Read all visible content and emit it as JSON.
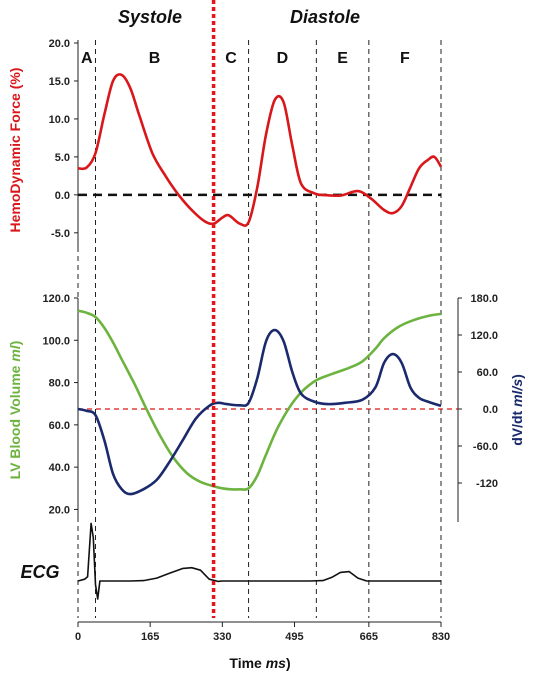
{
  "chart_data": {
    "type": "line",
    "headings": {
      "left": "Systole",
      "right": "Diastole"
    },
    "phase_labels": [
      "A",
      "B",
      "C",
      "D",
      "E",
      "F"
    ],
    "phase_boundaries_ms": [
      0,
      40,
      310,
      390,
      545,
      665,
      830
    ],
    "systole_diastole_boundary_ms": 310,
    "colors": {
      "force": "#d9171b",
      "volume": "#6db33f",
      "dvdt": "#1a2a6c",
      "ecg": "#111111",
      "divider": "#e3161b"
    },
    "x_axis": {
      "label_main": "Time ",
      "label_unit": "ms",
      "ticks": [
        0,
        165,
        330,
        495,
        665,
        830
      ],
      "tick_labels": [
        "0",
        "165",
        "330",
        "495",
        "665",
        "830"
      ],
      "range": [
        0,
        830
      ]
    },
    "panel_force": {
      "ylabel": "HemoDynamic Force (%)",
      "ylim": [
        -7,
        20
      ],
      "yticks": [
        20,
        15,
        10,
        5,
        0,
        -5
      ],
      "ytick_labels": [
        "20.0",
        "15.0",
        "10.0",
        "5.0",
        "0.0",
        "-5.0"
      ],
      "zero_line": 0,
      "series": [
        {
          "name": "HemoDynamic Force",
          "x": [
            0,
            20,
            40,
            60,
            80,
            100,
            120,
            140,
            170,
            200,
            230,
            260,
            290,
            310,
            330,
            345,
            370,
            390,
            410,
            430,
            450,
            470,
            490,
            510,
            540,
            560,
            600,
            640,
            670,
            700,
            720,
            740,
            760,
            780,
            800,
            815,
            830
          ],
          "y": [
            3.5,
            3.6,
            5.5,
            10.5,
            15.0,
            15.8,
            14.0,
            10.5,
            5.5,
            2.5,
            0,
            -2.0,
            -3.5,
            -3.8,
            -3.0,
            -2.7,
            -3.8,
            -3.6,
            1.0,
            8.0,
            12.5,
            12.2,
            6.5,
            1.5,
            0.2,
            0,
            -0.1,
            0.5,
            -0.5,
            -2.0,
            -2.4,
            -1.5,
            1.0,
            3.5,
            4.6,
            5.0,
            3.7
          ]
        }
      ]
    },
    "panel_volume": {
      "ylabel_main": "LV Blood Volume ",
      "ylabel_unit": "ml",
      "ylim": [
        15,
        120
      ],
      "yticks": [
        120,
        100,
        80,
        60,
        40,
        20
      ],
      "ytick_labels": [
        "120.0",
        "100.0",
        "80.0",
        "60.0",
        "40.0",
        "20.0"
      ],
      "y2label_main": "dV/dt ",
      "y2label_unit": "ml/s",
      "y2lim": [
        -180,
        180
      ],
      "y2ticks": [
        180,
        120,
        60,
        0,
        -60,
        -120
      ],
      "y2tick_labels": [
        "180.0",
        "120.0",
        "60.0",
        "0.0",
        "-60.0",
        "-120"
      ],
      "zero_line_y2": 0,
      "series": [
        {
          "name": "LV Blood Volume",
          "axis": "left",
          "x": [
            0,
            20,
            40,
            60,
            80,
            100,
            130,
            160,
            190,
            220,
            250,
            280,
            310,
            330,
            350,
            370,
            390,
            410,
            430,
            460,
            500,
            540,
            580,
            620,
            650,
            680,
            700,
            730,
            760,
            800,
            830
          ],
          "y": [
            114,
            113,
            111,
            106,
            99,
            91,
            79,
            66,
            54,
            44,
            37,
            33,
            31,
            30,
            29.5,
            29.5,
            30,
            36,
            46,
            60,
            73,
            80.5,
            84,
            87,
            90,
            96,
            101,
            106,
            109,
            111.5,
            112.5
          ]
        },
        {
          "name": "dV/dt",
          "axis": "right",
          "x": [
            0,
            20,
            40,
            60,
            80,
            100,
            120,
            150,
            180,
            210,
            240,
            270,
            300,
            320,
            340,
            370,
            390,
            410,
            430,
            450,
            470,
            490,
            510,
            540,
            570,
            610,
            650,
            680,
            700,
            720,
            740,
            760,
            780,
            800,
            830
          ],
          "y": [
            0,
            -3,
            -10,
            -50,
            -105,
            -130,
            -138,
            -130,
            -115,
            -85,
            -50,
            -15,
            5,
            10,
            8,
            6,
            10,
            50,
            110,
            128,
            110,
            60,
            25,
            12,
            8,
            10,
            15,
            35,
            75,
            89,
            75,
            35,
            18,
            12,
            5
          ]
        }
      ]
    },
    "panel_ecg": {
      "label": "ECG",
      "series": [
        {
          "name": "ECG",
          "x": [
            0,
            15,
            22,
            30,
            35,
            40,
            45,
            50,
            60,
            120,
            150,
            180,
            210,
            240,
            260,
            280,
            300,
            320,
            330,
            400,
            450,
            530,
            560,
            580,
            600,
            620,
            640,
            660,
            700,
            800,
            830
          ],
          "y": [
            0,
            0.05,
            0.12,
            1.6,
            1.2,
            -0.1,
            -0.5,
            0,
            0,
            0,
            0.01,
            0.08,
            0.22,
            0.35,
            0.37,
            0.3,
            0.05,
            -0.01,
            0,
            0,
            0,
            0,
            0.01,
            0.1,
            0.24,
            0.26,
            0.08,
            0,
            0,
            0,
            0
          ]
        }
      ]
    }
  }
}
